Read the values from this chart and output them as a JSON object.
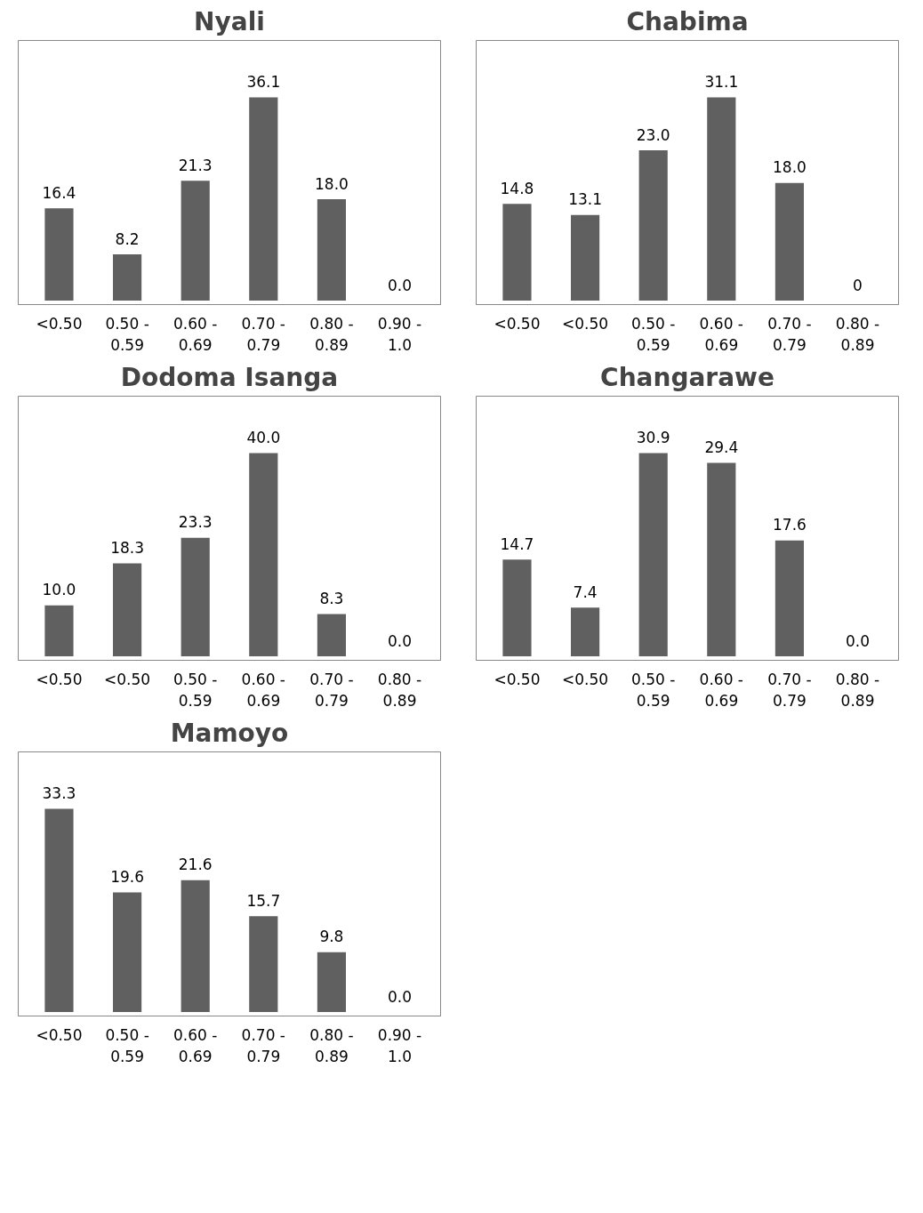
{
  "chart_data": [
    {
      "type": "bar",
      "title": "Nyali",
      "categories": [
        "<0.50",
        "0.50 - 0.59",
        "0.60 - 0.69",
        "0.70 - 0.79",
        "0.80 - 0.89",
        "0.90 - 1.0"
      ],
      "values": [
        16.4,
        8.2,
        21.3,
        36.1,
        18.0,
        0.0
      ],
      "color": "#606060",
      "value_labels": [
        "16.4",
        "8.2",
        "21.3",
        "36.1",
        "18.0",
        "0.0"
      ]
    },
    {
      "type": "bar",
      "title": "Chabima",
      "categories": [
        "<0.50",
        "<0.50",
        "0.50 - 0.59",
        "0.60 - 0.69",
        "0.70 - 0.79",
        "0.80 - 0.89"
      ],
      "values": [
        14.8,
        13.1,
        23.0,
        31.1,
        18.0,
        0
      ],
      "color": "#606060",
      "value_labels": [
        "14.8",
        "13.1",
        "23.0",
        "31.1",
        "18.0",
        "0"
      ]
    },
    {
      "type": "bar",
      "title": "Dodoma Isanga",
      "categories": [
        "<0.50",
        "<0.50",
        "0.50 - 0.59",
        "0.60 - 0.69",
        "0.70 - 0.79",
        "0.80 - 0.89"
      ],
      "values": [
        10.0,
        18.3,
        23.3,
        40.0,
        8.3,
        0.0
      ],
      "color": "#606060",
      "value_labels": [
        "10.0",
        "18.3",
        "23.3",
        "40.0",
        "8.3",
        "0.0"
      ]
    },
    {
      "type": "bar",
      "title": "Changarawe",
      "categories": [
        "<0.50",
        "<0.50",
        "0.50 - 0.59",
        "0.60 - 0.69",
        "0.70 - 0.79",
        "0.80 - 0.89"
      ],
      "values": [
        14.7,
        7.4,
        30.9,
        29.4,
        17.6,
        0.0
      ],
      "color": "#606060",
      "value_labels": [
        "14.7",
        "7.4",
        "30.9",
        "29.4",
        "17.6",
        "0.0"
      ]
    },
    {
      "type": "bar",
      "title": "Mamoyo",
      "categories": [
        "<0.50",
        "0.50 - 0.59",
        "0.60 - 0.69",
        "0.70 - 0.79",
        "0.80 - 0.89",
        "0.90 - 1.0"
      ],
      "values": [
        33.3,
        19.6,
        21.6,
        15.7,
        9.8,
        0.0
      ],
      "color": "#606060",
      "value_labels": [
        "33.3",
        "19.6",
        "21.6",
        "15.7",
        "9.8",
        "0.0"
      ]
    }
  ]
}
